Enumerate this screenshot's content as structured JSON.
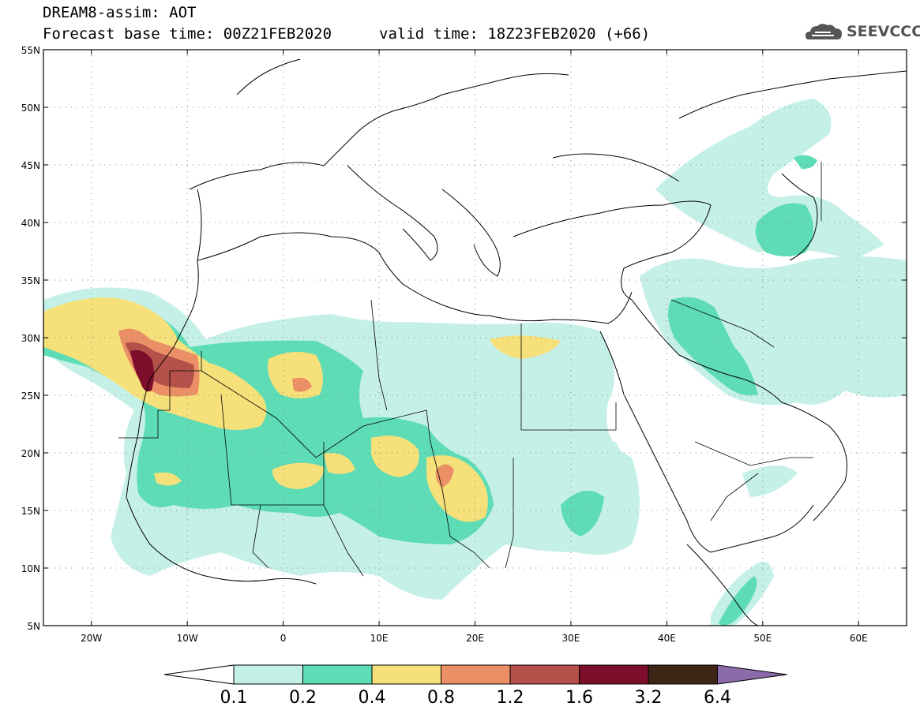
{
  "header": {
    "title": "DREAM8-assim: AOT",
    "base_time": "Forecast base time: 00Z21FEB2020",
    "valid_time": "valid time: 18Z23FEB2020 (+66)",
    "logo_text": "SEEVCCC"
  },
  "map": {
    "lon_range": [
      -25,
      65
    ],
    "lat_range": [
      5,
      55
    ],
    "lon_ticks": [
      {
        "value": -20,
        "label": "20W"
      },
      {
        "value": -10,
        "label": "10W"
      },
      {
        "value": 0,
        "label": "0"
      },
      {
        "value": 10,
        "label": "10E"
      },
      {
        "value": 20,
        "label": "20E"
      },
      {
        "value": 30,
        "label": "30E"
      },
      {
        "value": 40,
        "label": "40E"
      },
      {
        "value": 50,
        "label": "50E"
      },
      {
        "value": 60,
        "label": "60E"
      }
    ],
    "lat_ticks": [
      {
        "value": 5,
        "label": "5N"
      },
      {
        "value": 10,
        "label": "10N"
      },
      {
        "value": 15,
        "label": "15N"
      },
      {
        "value": 20,
        "label": "20N"
      },
      {
        "value": 25,
        "label": "25N"
      },
      {
        "value": 30,
        "label": "30N"
      },
      {
        "value": 35,
        "label": "35N"
      },
      {
        "value": 40,
        "label": "40N"
      },
      {
        "value": 45,
        "label": "45N"
      },
      {
        "value": 50,
        "label": "50N"
      },
      {
        "value": 55,
        "label": "55N"
      }
    ],
    "grid": "dotted"
  },
  "colorbar": {
    "labels": [
      "0.1",
      "0.2",
      "0.4",
      "0.8",
      "1.2",
      "1.6",
      "3.2",
      "6.4"
    ],
    "colors": [
      "#ffffff",
      "#c5f0e8",
      "#5ddcb5",
      "#f6e07a",
      "#eb9066",
      "#b4514a",
      "#7c0e2c",
      "#3e2516",
      "#8a6aa8"
    ]
  },
  "levels": {
    "l1": "#c5f0e8",
    "l2": "#5ddcb5",
    "l3": "#f6e07a",
    "l4": "#eb9066",
    "l5": "#b4514a",
    "l6": "#7c0e2c"
  }
}
